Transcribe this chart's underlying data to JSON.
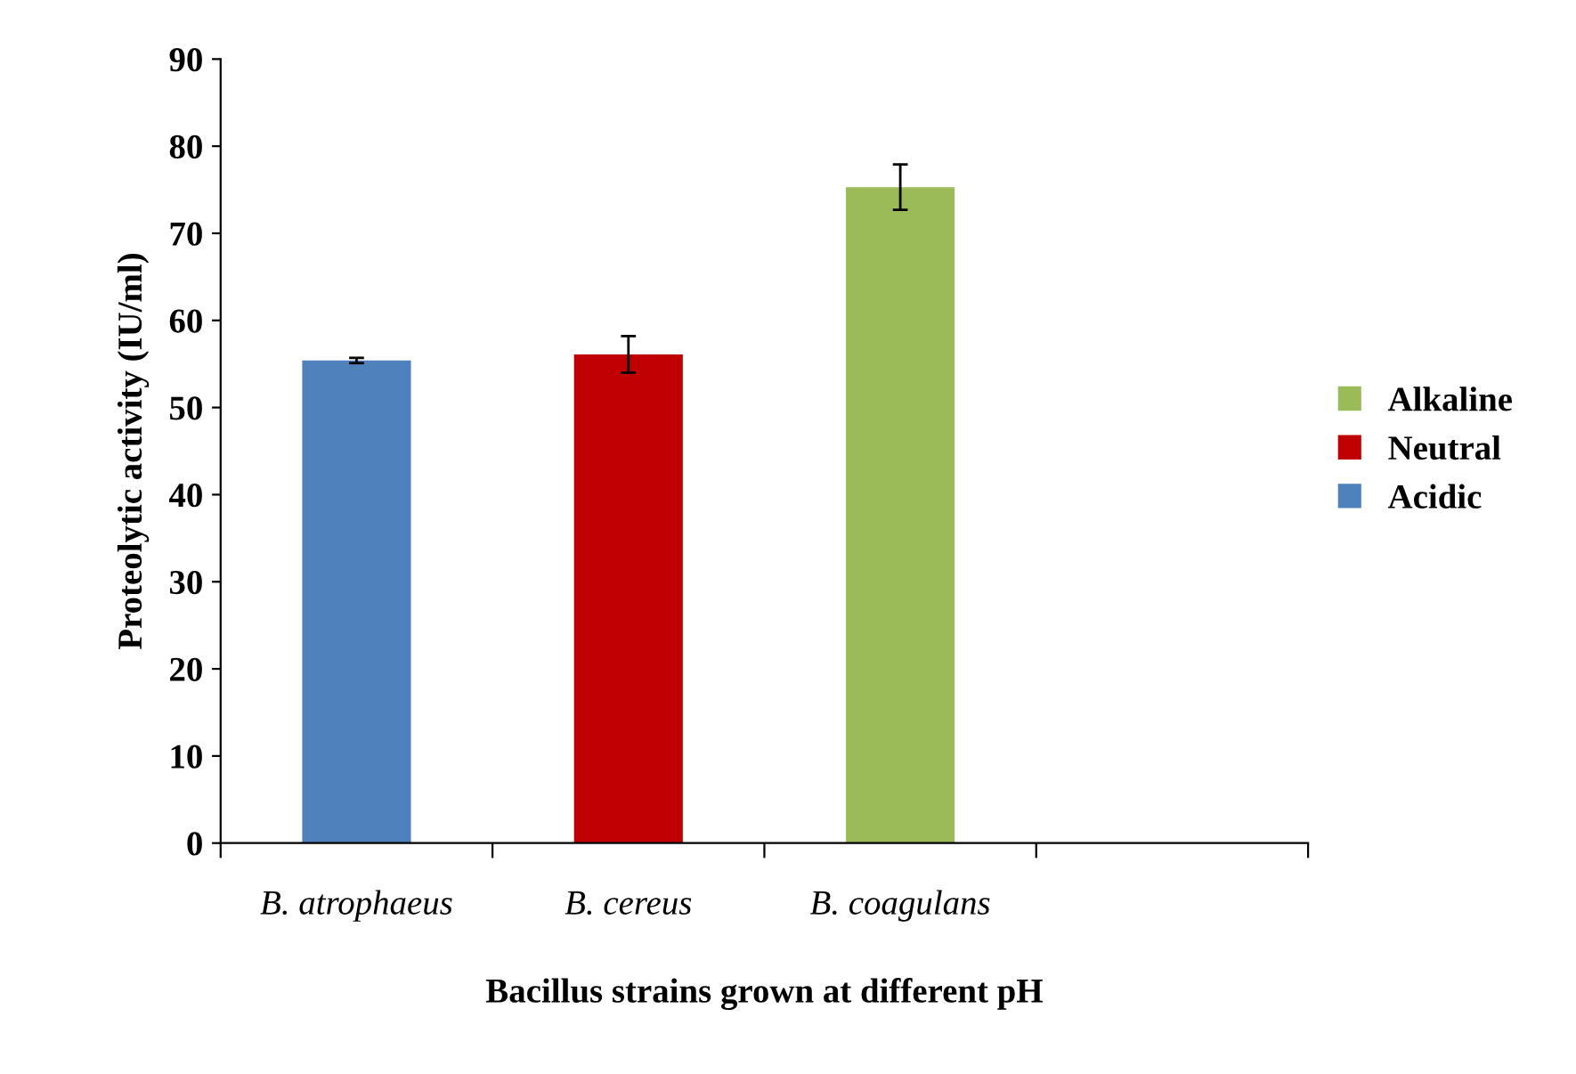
{
  "chart_data": {
    "type": "bar",
    "xlabel": "Bacillus strains grown at different pH",
    "ylabel": "Proteolytic activity (IU/ml)",
    "categories": [
      "B. atrophaeus",
      "B. cereus",
      "B. coagulans",
      null
    ],
    "series": [
      {
        "name": "Alkaline",
        "color": "#9bbb59",
        "values": [
          null,
          null,
          75.3,
          null
        ],
        "errors": [
          null,
          null,
          2.6,
          null
        ]
      },
      {
        "name": "Neutral",
        "color": "#c00000",
        "values": [
          null,
          56.1,
          null,
          null
        ],
        "errors": [
          null,
          2.1,
          null,
          null
        ]
      },
      {
        "name": "Acidic",
        "color": "#4f81bd",
        "values": [
          55.4,
          null,
          null,
          null
        ],
        "errors": [
          0.3,
          null,
          null,
          null
        ]
      }
    ],
    "ylim": [
      0,
      90
    ],
    "yticks": [
      0,
      10,
      20,
      30,
      40,
      50,
      60,
      70,
      80,
      90
    ],
    "grid": false,
    "legend": "right"
  }
}
